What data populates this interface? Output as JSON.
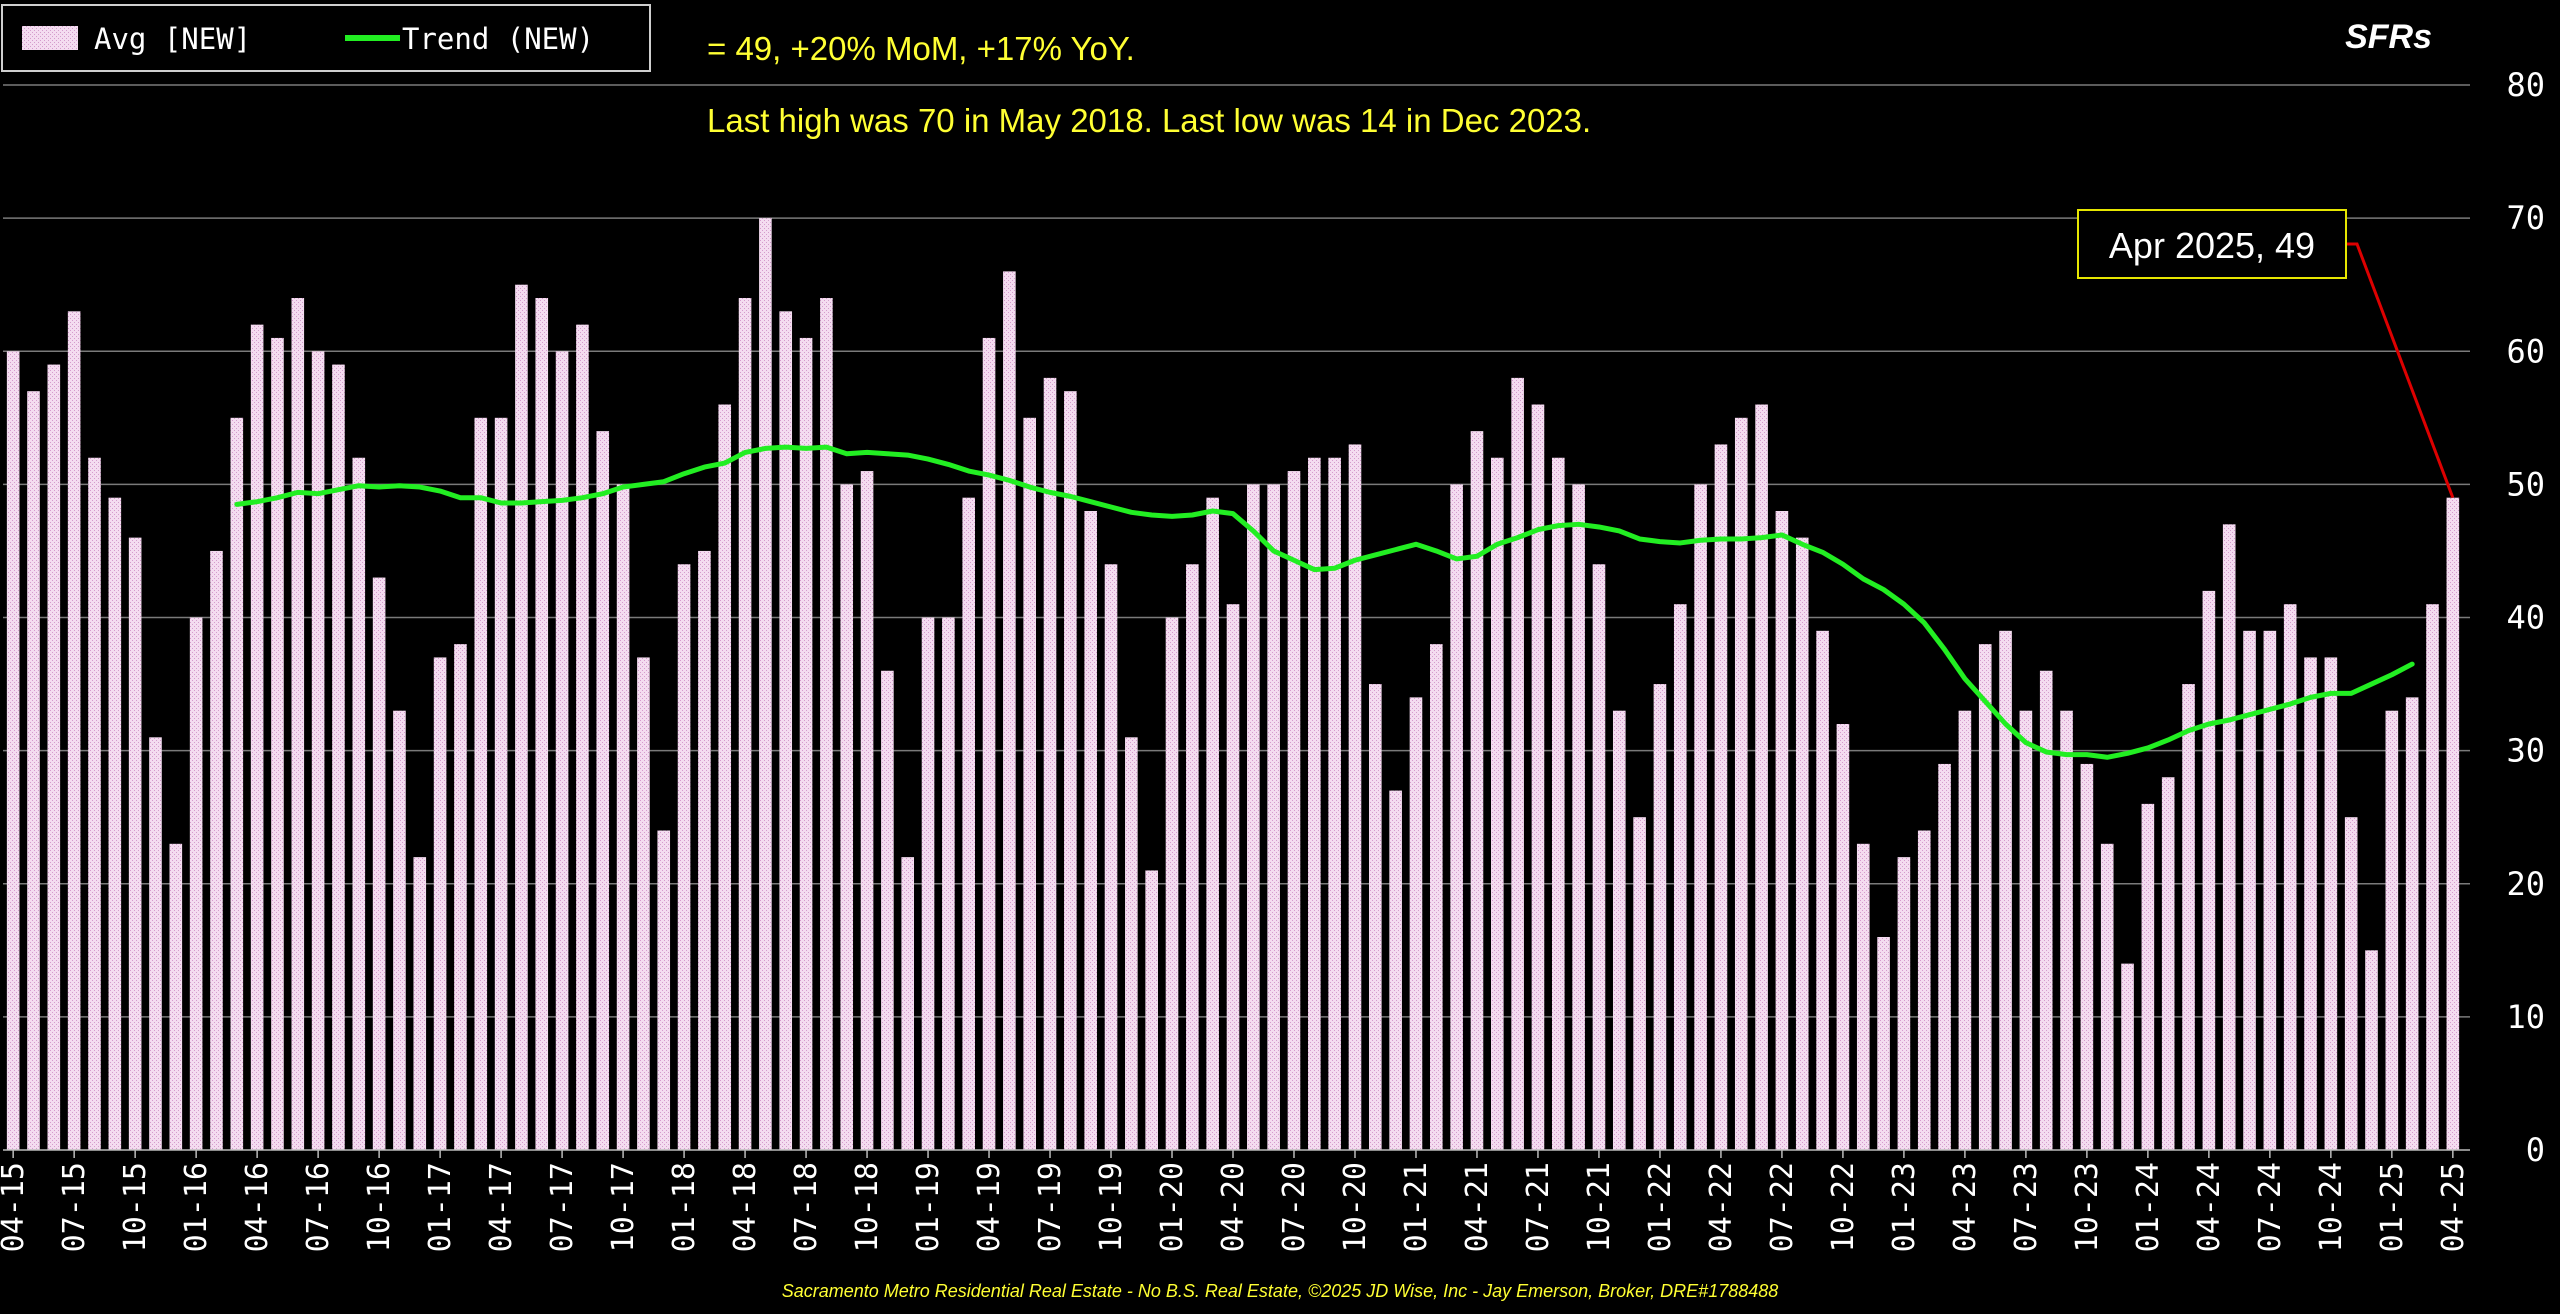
{
  "chart_data": {
    "type": "bar",
    "title": "",
    "corner_label": "SFRs",
    "stat_line": "= 49, +20% MoM, +17% YoY.",
    "high_low_line": "Last high was 70 in May 2018. Last low was 14 in Dec 2023.",
    "callout": "Apr 2025,  49",
    "footer": "Sacramento Metro Residential Real Estate - No B.S. Real Estate, ©2025 JD Wise, Inc - Jay Emerson, Broker, DRE#1788488",
    "legend": [
      {
        "label": "Avg [NEW]",
        "kind": "bar"
      },
      {
        "label": "Trend (NEW)",
        "kind": "line"
      }
    ],
    "legend_position": "top-left",
    "ylim": [
      0,
      80
    ],
    "y_ticks": [
      "0",
      "10",
      "20",
      "30",
      "40",
      "50",
      "60",
      "70",
      "80"
    ],
    "y_axis_side": "right",
    "grid": true,
    "x_tick_labels": [
      "04-15",
      "07-15",
      "10-15",
      "01-16",
      "04-16",
      "07-16",
      "10-16",
      "01-17",
      "04-17",
      "07-17",
      "10-17",
      "01-18",
      "04-18",
      "07-18",
      "10-18",
      "01-19",
      "04-19",
      "07-19",
      "10-19",
      "01-20",
      "04-20",
      "07-20",
      "10-20",
      "01-21",
      "04-21",
      "07-21",
      "10-21",
      "01-22",
      "04-22",
      "07-22",
      "10-22",
      "01-23",
      "04-23",
      "07-23",
      "10-23",
      "01-24",
      "04-24",
      "07-24",
      "10-24",
      "01-25",
      "04-25"
    ],
    "start_month": "04-15",
    "series": [
      {
        "name": "Avg [NEW]",
        "type": "bar",
        "values": [
          60,
          57,
          59,
          63,
          52,
          49,
          46,
          31,
          23,
          40,
          45,
          55,
          62,
          61,
          64,
          60,
          59,
          52,
          43,
          33,
          22,
          37,
          38,
          55,
          55,
          65,
          64,
          60,
          62,
          54,
          50,
          37,
          24,
          44,
          45,
          56,
          64,
          70,
          63,
          61,
          64,
          50,
          51,
          36,
          22,
          40,
          40,
          49,
          61,
          66,
          55,
          58,
          57,
          48,
          44,
          31,
          21,
          40,
          44,
          49,
          41,
          50,
          50,
          51,
          52,
          52,
          53,
          35,
          27,
          34,
          38,
          50,
          54,
          52,
          58,
          56,
          52,
          50,
          44,
          33,
          25,
          35,
          41,
          50,
          53,
          55,
          56,
          48,
          46,
          39,
          32,
          23,
          16,
          22,
          24,
          29,
          33,
          38,
          39,
          33,
          36,
          33,
          29,
          23,
          14,
          26,
          28,
          35,
          42,
          47,
          39,
          39,
          41,
          37,
          37,
          25,
          15,
          33,
          34,
          41,
          49
        ]
      },
      {
        "name": "Trend (NEW)",
        "type": "line",
        "start_index": 11,
        "values": [
          48.5,
          48.7,
          49.0,
          49.4,
          49.3,
          49.6,
          49.9,
          49.8,
          49.9,
          49.8,
          49.5,
          49.0,
          49.0,
          48.6,
          48.6,
          48.7,
          48.8,
          49.0,
          49.3,
          49.8,
          50.0,
          50.2,
          50.8,
          51.3,
          51.6,
          52.4,
          52.7,
          52.8,
          52.7,
          52.8,
          52.3,
          52.4,
          52.3,
          52.2,
          51.9,
          51.5,
          51.0,
          50.7,
          50.3,
          49.8,
          49.4,
          49.1,
          48.7,
          48.3,
          47.9,
          47.7,
          47.6,
          47.7,
          48.0,
          47.8,
          46.5,
          45.0,
          44.3,
          43.6,
          43.7,
          44.3,
          44.7,
          45.1,
          45.5,
          45.0,
          44.4,
          44.6,
          45.5,
          46.0,
          46.6,
          46.9,
          47.0,
          46.8,
          46.5,
          45.9,
          45.7,
          45.6,
          45.8,
          45.9,
          45.9,
          46.0,
          46.2,
          45.5,
          44.9,
          44.0,
          42.9,
          42.1,
          41.0,
          39.6,
          37.6,
          35.4,
          33.7,
          32.0,
          30.6,
          29.9,
          29.7,
          29.7,
          29.5,
          29.8,
          30.2,
          30.8,
          31.5,
          32.0,
          32.3,
          32.7,
          33.1,
          33.5,
          34.0,
          34.3,
          34.3,
          35.0,
          35.7,
          36.5
        ]
      }
    ],
    "colors": {
      "background": "#000000",
      "bar_fill": "#f4dcf0",
      "bar_hatch": "#d49ccc",
      "trend_line": "#22ee22",
      "annotation_text": "#ffff33",
      "callout_line": "#dd0000",
      "grid": "#7a7a7a",
      "axis_text": "#ffffff"
    }
  }
}
